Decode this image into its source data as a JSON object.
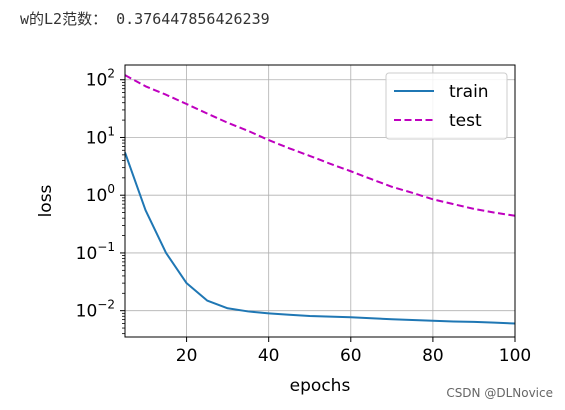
{
  "output": {
    "text": "w的L2范数： 0.376447856426239"
  },
  "watermark": "CSDN @DLNovice",
  "chart_data": {
    "type": "line",
    "xlabel": "epochs",
    "ylabel": "loss",
    "xlim": [
      5,
      100
    ],
    "ylim": [
      0.0035,
      180
    ],
    "yscale": "log",
    "grid": true,
    "legend_position": "top-right",
    "x_ticks": [
      20,
      40,
      60,
      80,
      100
    ],
    "y_ticks": [
      {
        "value": 0.01,
        "base": "10",
        "exp": "−2"
      },
      {
        "value": 0.1,
        "base": "10",
        "exp": "−1"
      },
      {
        "value": 1,
        "base": "10",
        "exp": "0"
      },
      {
        "value": 10,
        "base": "10",
        "exp": "1"
      },
      {
        "value": 100,
        "base": "10",
        "exp": "2"
      }
    ],
    "series": [
      {
        "name": "train",
        "color": "#1f77b4",
        "dash": "solid",
        "x": [
          5,
          10,
          15,
          20,
          25,
          30,
          35,
          40,
          45,
          50,
          55,
          60,
          65,
          70,
          75,
          80,
          85,
          90,
          95,
          100
        ],
        "y": [
          5.5,
          0.55,
          0.1,
          0.03,
          0.015,
          0.011,
          0.0097,
          0.009,
          0.0085,
          0.0081,
          0.0079,
          0.0077,
          0.0074,
          0.0071,
          0.0069,
          0.0067,
          0.0065,
          0.0064,
          0.0062,
          0.006
        ]
      },
      {
        "name": "test",
        "color": "#bf00bf",
        "dash": "dashed",
        "x": [
          5,
          10,
          15,
          20,
          25,
          30,
          35,
          40,
          45,
          50,
          55,
          60,
          65,
          70,
          75,
          80,
          85,
          90,
          95,
          100
        ],
        "y": [
          120,
          77,
          55,
          38,
          26,
          18,
          13,
          9,
          6.5,
          4.8,
          3.5,
          2.6,
          1.9,
          1.4,
          1.1,
          0.85,
          0.7,
          0.58,
          0.5,
          0.44
        ]
      }
    ]
  }
}
